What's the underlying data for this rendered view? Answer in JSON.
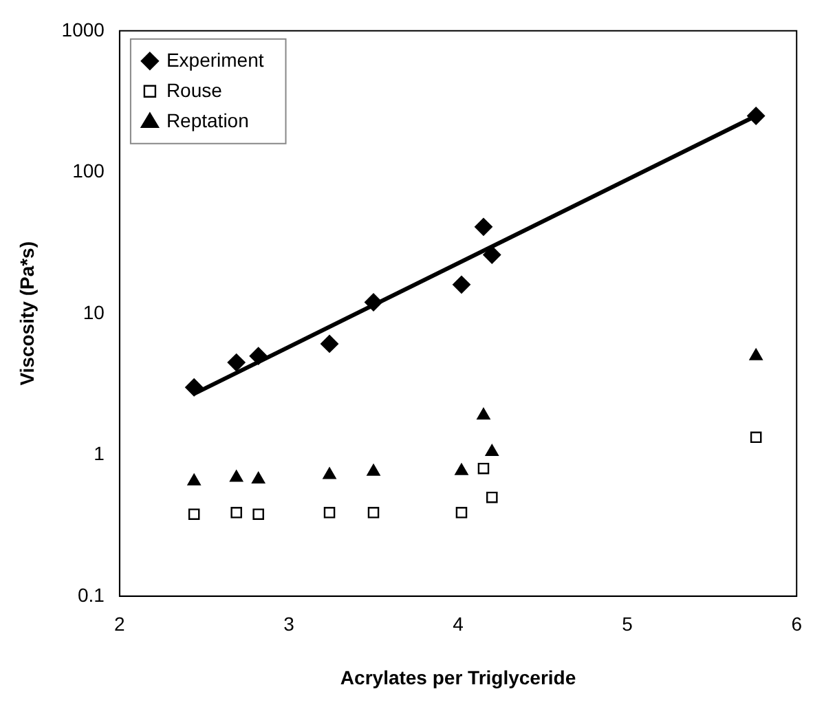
{
  "chart_data": {
    "type": "scatter",
    "xlabel": "Acrylates per Triglyceride",
    "ylabel": "Viscosity (Pa*s)",
    "x": [
      2.44,
      2.69,
      2.82,
      3.24,
      3.5,
      4.02,
      4.15,
      4.2,
      5.76
    ],
    "series": [
      {
        "name": "Experiment",
        "color": "#000000",
        "marker": "diamond",
        "values": [
          3.0,
          4.5,
          5.0,
          6.1,
          12,
          16,
          41,
          26,
          250
        ]
      },
      {
        "name": "Rouse",
        "color": "#000000",
        "marker": "square",
        "values": [
          0.38,
          0.39,
          0.38,
          0.39,
          0.39,
          0.39,
          0.8,
          0.5,
          1.33
        ]
      },
      {
        "name": "Reptation",
        "color": "#000000",
        "marker": "triangle",
        "values": [
          0.65,
          0.69,
          0.67,
          0.72,
          0.76,
          0.77,
          1.9,
          1.05,
          5.0
        ]
      },
      {
        "type": "line",
        "color": "#000000",
        "marker": "none",
        "x": [
          2.44,
          5.76
        ],
        "values": [
          2.7,
          250
        ]
      }
    ],
    "xlim": [
      2,
      6
    ],
    "xticks": [
      2,
      3,
      4,
      5,
      6
    ],
    "ylim": [
      0.1,
      1000
    ],
    "yticks": [
      0.1,
      1,
      10,
      100,
      1000
    ],
    "log": "y",
    "grid": false,
    "legend": "top left"
  }
}
